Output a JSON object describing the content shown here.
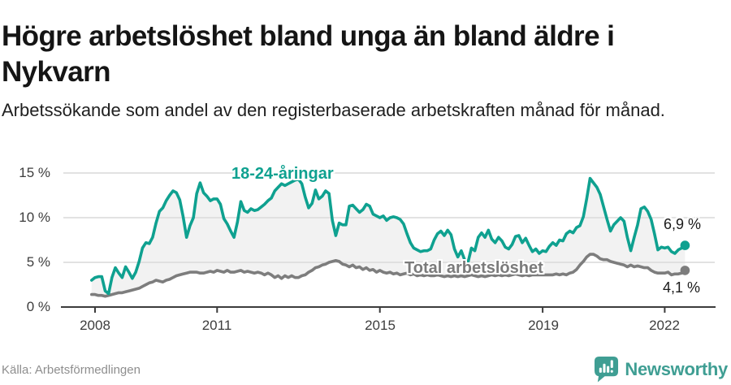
{
  "header": {
    "title": "Högre arbetslöshet bland unga än bland äldre i Nykvarn",
    "subtitle": "Arbetssökande som andel av den registerbaserade arbetskraften månad för månad."
  },
  "chart": {
    "y_ticks": [
      "15 %",
      "10 %",
      "5 %",
      "0 %"
    ],
    "x_ticks": [
      "2008",
      "2011",
      "2015",
      "2019",
      "2022"
    ],
    "end_label_young": "6,9 %",
    "end_label_total": "4,1 %",
    "colors": {
      "young": "#0fa190",
      "total": "#7d7d7d",
      "total_label": "#7b7b7b",
      "fill": "#f2f2f2",
      "grid": "#d9d9d9",
      "axis": "#3c3c3c"
    }
  },
  "footer": {
    "source": "Källa: Arbetsförmedlingen",
    "logo_text": "Newsworthy",
    "logo_color": "#3f9e93"
  },
  "chart_data": {
    "type": "line",
    "title": "Högre arbetslöshet bland unga än bland äldre i Nykvarn",
    "subtitle": "Arbetssökande som andel av den registerbaserade arbetskraften månad för månad.",
    "unit": "%",
    "frequency": "monthly",
    "x_start_month": "2007-12",
    "x_end_month": "2022-07",
    "ylim": [
      0,
      15
    ],
    "y_ticks_percent": [
      0,
      5,
      10,
      15
    ],
    "x_tick_years": [
      2008,
      2011,
      2015,
      2019,
      2022
    ],
    "grid": "horizontal",
    "legend_position": "inline-labels",
    "end_values": {
      "young": 6.9,
      "total": 4.1
    },
    "series": [
      {
        "name": "18-24-åringar",
        "color": "#0fa190",
        "values": [
          3.0,
          3.3,
          3.4,
          3.4,
          1.8,
          1.5,
          3.3,
          4.4,
          3.8,
          3.3,
          4.5,
          3.9,
          3.2,
          3.9,
          5.1,
          6.6,
          7.2,
          7.1,
          7.8,
          9.4,
          10.7,
          11.1,
          11.9,
          12.5,
          13.0,
          12.8,
          12.0,
          10.1,
          7.8,
          9.1,
          10.0,
          12.7,
          13.9,
          12.8,
          12.4,
          11.9,
          12.1,
          12.1,
          11.5,
          9.9,
          9.3,
          8.5,
          7.8,
          9.5,
          11.8,
          10.8,
          10.6,
          11.0,
          10.8,
          10.9,
          11.2,
          11.5,
          11.9,
          12.2,
          13.0,
          13.4,
          13.8,
          13.6,
          13.8,
          14.0,
          14.2,
          14.3,
          13.8,
          12.3,
          11.1,
          11.6,
          13.1,
          12.1,
          12.4,
          13.0,
          12.7,
          9.7,
          8.0,
          9.4,
          9.2,
          9.2,
          11.3,
          11.4,
          11.0,
          10.6,
          10.9,
          11.5,
          11.3,
          10.4,
          10.2,
          10.0,
          10.2,
          9.7,
          10.0,
          10.1,
          10.0,
          9.8,
          9.3,
          8.2,
          7.2,
          6.6,
          6.4,
          6.2,
          6.3,
          6.3,
          6.5,
          7.5,
          8.2,
          8.5,
          8.0,
          8.6,
          8.1,
          6.5,
          5.6,
          6.3,
          5.3,
          5.0,
          6.6,
          6.3,
          7.8,
          8.3,
          7.8,
          8.6,
          7.6,
          7.2,
          7.8,
          7.4,
          6.7,
          6.5,
          7.0,
          7.9,
          8.0,
          7.2,
          7.7,
          6.9,
          6.2,
          6.5,
          6.0,
          6.3,
          6.2,
          6.8,
          7.2,
          6.9,
          7.5,
          7.4,
          8.2,
          8.5,
          8.3,
          8.9,
          9.1,
          10.1,
          12.1,
          14.4,
          13.9,
          13.4,
          12.6,
          11.2,
          9.8,
          8.5,
          9.2,
          9.6,
          10.0,
          9.6,
          7.8,
          6.3,
          7.8,
          9.2,
          11.0,
          11.2,
          10.7,
          9.8,
          8.2,
          6.4,
          6.7,
          6.6,
          6.7,
          6.2,
          6.0,
          6.4,
          6.6,
          6.9
        ]
      },
      {
        "name": "Total arbetslöshet",
        "color": "#7d7d7d",
        "values": [
          1.4,
          1.4,
          1.3,
          1.3,
          1.2,
          1.3,
          1.4,
          1.5,
          1.6,
          1.6,
          1.7,
          1.8,
          1.9,
          2.0,
          2.1,
          2.3,
          2.5,
          2.7,
          2.8,
          3.0,
          2.9,
          2.8,
          3.0,
          3.1,
          3.3,
          3.5,
          3.6,
          3.7,
          3.8,
          3.9,
          3.9,
          3.9,
          3.8,
          3.8,
          3.9,
          4.0,
          3.9,
          4.1,
          4.0,
          3.9,
          4.1,
          3.9,
          3.9,
          4.0,
          4.1,
          3.9,
          4.0,
          3.9,
          3.8,
          3.9,
          3.8,
          3.6,
          3.8,
          3.6,
          3.3,
          3.5,
          3.2,
          3.5,
          3.3,
          3.5,
          3.3,
          3.3,
          3.5,
          3.6,
          3.9,
          4.1,
          4.4,
          4.5,
          4.7,
          4.8,
          5.0,
          5.1,
          5.2,
          5.1,
          4.8,
          4.7,
          4.5,
          4.7,
          4.4,
          4.5,
          4.2,
          4.4,
          4.1,
          4.2,
          3.9,
          4.1,
          3.9,
          3.8,
          3.9,
          3.7,
          3.8,
          3.6,
          3.7,
          3.8,
          3.6,
          3.7,
          3.5,
          3.6,
          3.5,
          3.6,
          3.5,
          3.5,
          3.6,
          3.5,
          3.4,
          3.5,
          3.4,
          3.5,
          3.4,
          3.5,
          3.4,
          3.5,
          3.6,
          3.5,
          3.4,
          3.5,
          3.4,
          3.5,
          3.6,
          3.5,
          3.6,
          3.5,
          3.6,
          3.5,
          3.6,
          3.7,
          3.6,
          3.5,
          3.6,
          3.5,
          3.6,
          3.6,
          3.6,
          3.6,
          3.6,
          3.6,
          3.6,
          3.7,
          3.6,
          3.7,
          3.6,
          3.8,
          3.9,
          4.2,
          4.7,
          5.1,
          5.6,
          5.9,
          5.9,
          5.7,
          5.4,
          5.3,
          5.3,
          5.1,
          5.0,
          4.9,
          4.8,
          4.7,
          4.5,
          4.7,
          4.5,
          4.6,
          4.5,
          4.4,
          4.4,
          4.1,
          3.9,
          3.8,
          3.8,
          3.8,
          3.9,
          3.6,
          3.7,
          3.7,
          3.8,
          4.1
        ]
      }
    ]
  }
}
